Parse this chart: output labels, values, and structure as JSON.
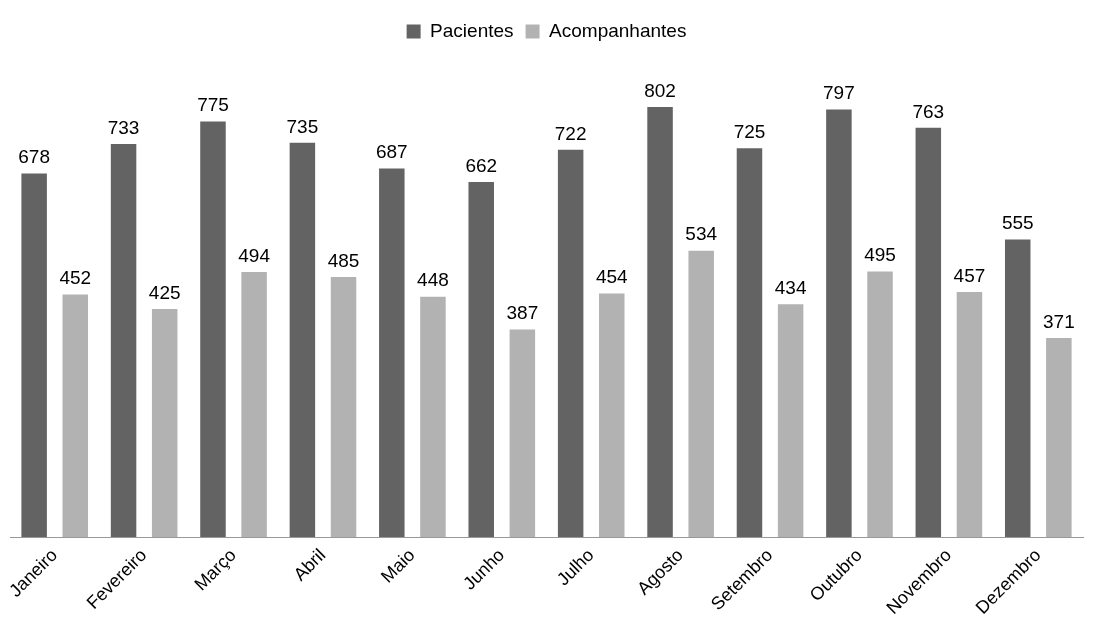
{
  "chart_data": {
    "type": "bar",
    "categories": [
      "Janeiro",
      "Fevereiro",
      "Março",
      "Abril",
      "Maio",
      "Junho",
      "Julho",
      "Agosto",
      "Setembro",
      "Outubro",
      "Novembro",
      "Dezembro"
    ],
    "series": [
      {
        "name": "Pacientes",
        "color": "#636363",
        "values": [
          678,
          733,
          775,
          735,
          687,
          662,
          722,
          802,
          725,
          797,
          763,
          555
        ]
      },
      {
        "name": "Acompanhantes",
        "color": "#b2b2b2",
        "values": [
          452,
          425,
          494,
          485,
          448,
          387,
          454,
          534,
          434,
          495,
          457,
          371
        ]
      }
    ],
    "data_labels": true,
    "legend": "top",
    "grid": false
  }
}
